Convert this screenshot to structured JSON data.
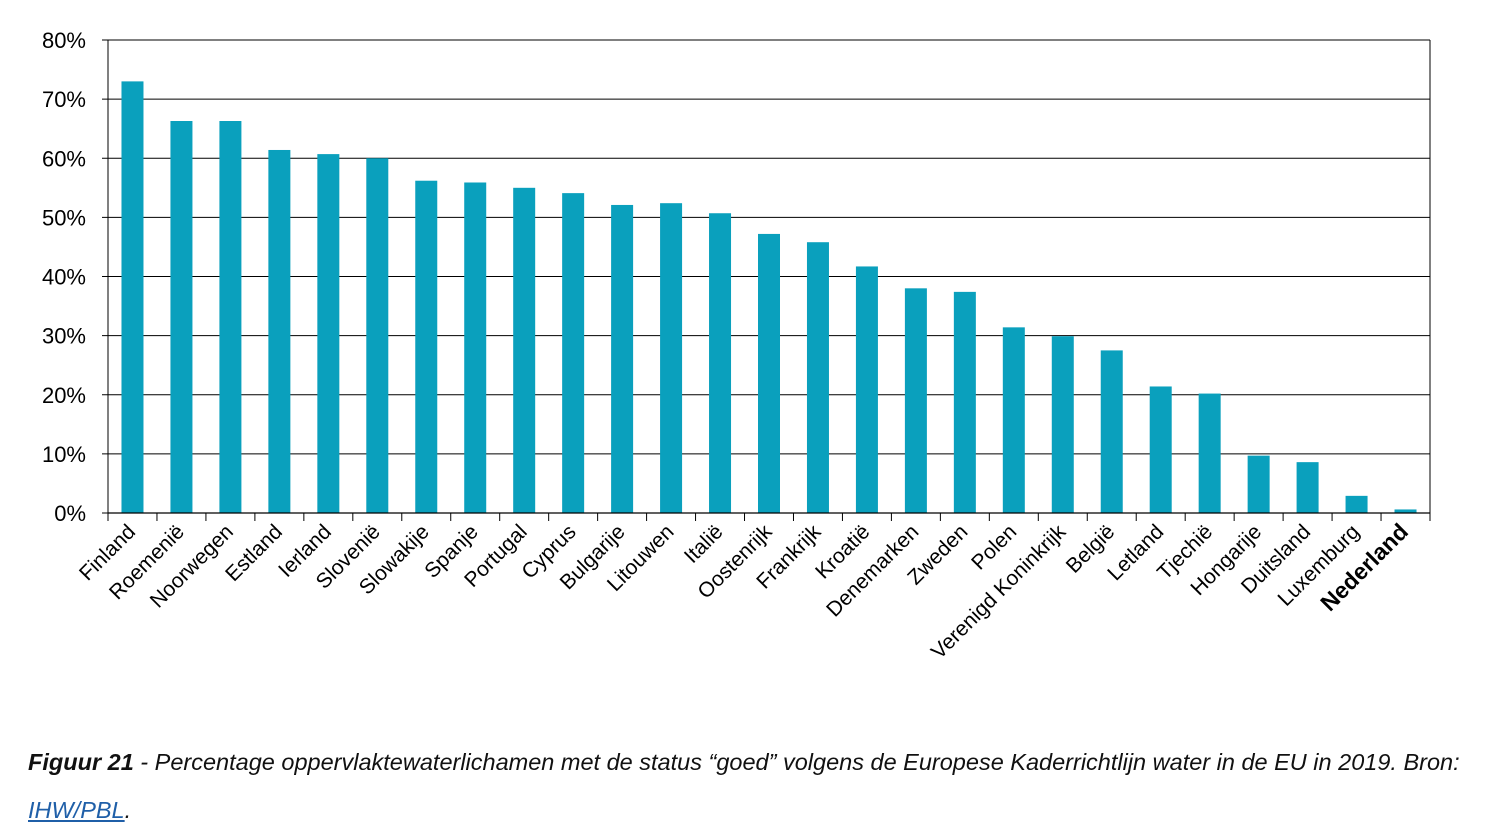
{
  "chart_data": {
    "type": "bar",
    "categories": [
      "Finland",
      "Roemenië",
      "Noorwegen",
      "Estland",
      "Ierland",
      "Slovenië",
      "Slowakije",
      "Spanje",
      "Portugal",
      "Cyprus",
      "Bulgarije",
      "Litouwen",
      "Italië",
      "Oostenrijk",
      "Frankrijk",
      "Kroatië",
      "Denemarken",
      "Zweden",
      "Polen",
      "Verenigd Koninkrijk",
      "België",
      "Letland",
      "Tjechië",
      "Hongarije",
      "Duitsland",
      "Luxemburg",
      "Nederland"
    ],
    "values": [
      73,
      66.3,
      66.3,
      61.4,
      60.7,
      60,
      56.2,
      55.9,
      55,
      54.1,
      52.1,
      52.4,
      50.7,
      47.2,
      45.8,
      41.7,
      38,
      37.4,
      31.4,
      29.9,
      27.5,
      21.4,
      20.2,
      9.7,
      8.6,
      2.9,
      0.6
    ],
    "highlight": "Nederland",
    "ylim": [
      0,
      80
    ],
    "yticks": [
      "0%",
      "10%",
      "20%",
      "30%",
      "40%",
      "50%",
      "60%",
      "70%",
      "80%"
    ],
    "bar_color": "#0aa0bd",
    "grid": true,
    "title": "",
    "xlabel": "",
    "ylabel": ""
  },
  "caption": {
    "label": "Figuur 21",
    "text": " - Percentage oppervlaktewaterlichamen met de status “goed” volgens de Europese Kaderrichtlijn water in de EU in 2019. Bron: ",
    "link": "IHW/PBL",
    "end": "."
  }
}
